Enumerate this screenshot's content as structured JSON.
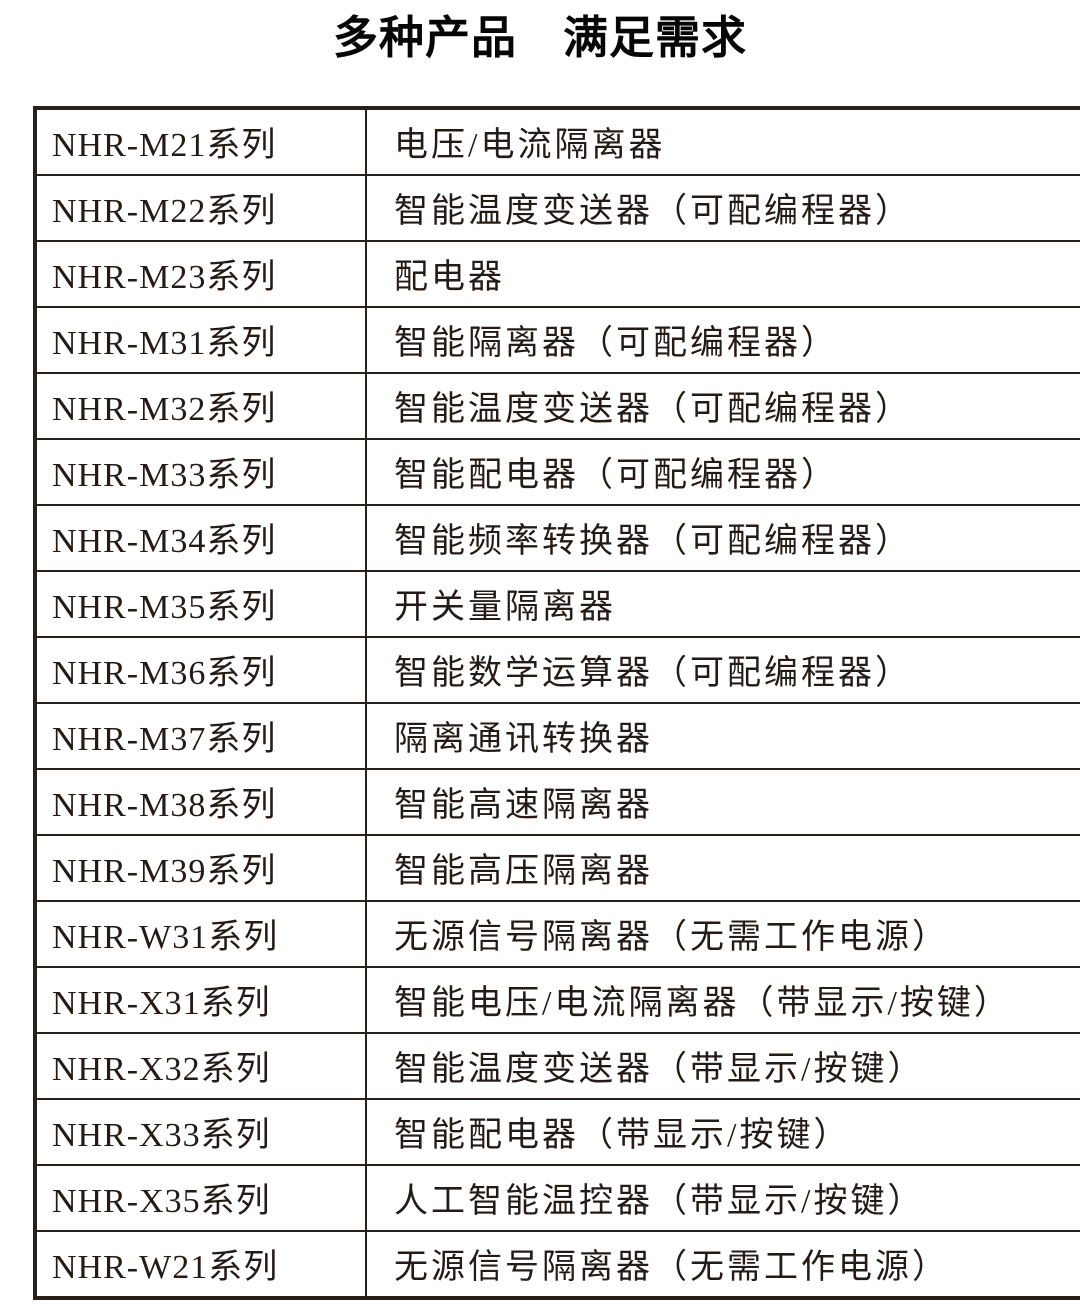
{
  "title": "多种产品　满足需求",
  "colors": {
    "background": "#ffffff",
    "title_text": "#060606",
    "table_text": "#241b16",
    "table_border": "#29201b"
  },
  "table": {
    "columns": [
      "series",
      "description"
    ],
    "rows": [
      {
        "series": "NHR-M21系列",
        "description": "电压/电流隔离器"
      },
      {
        "series": "NHR-M22系列",
        "description": "智能温度变送器（可配编程器）"
      },
      {
        "series": "NHR-M23系列",
        "description": "配电器"
      },
      {
        "series": "NHR-M31系列",
        "description": "智能隔离器（可配编程器）"
      },
      {
        "series": "NHR-M32系列",
        "description": "智能温度变送器（可配编程器）"
      },
      {
        "series": "NHR-M33系列",
        "description": "智能配电器（可配编程器）"
      },
      {
        "series": "NHR-M34系列",
        "description": "智能频率转换器（可配编程器）"
      },
      {
        "series": "NHR-M35系列",
        "description": "开关量隔离器"
      },
      {
        "series": "NHR-M36系列",
        "description": "智能数学运算器（可配编程器）"
      },
      {
        "series": "NHR-M37系列",
        "description": "隔离通讯转换器"
      },
      {
        "series": "NHR-M38系列",
        "description": "智能高速隔离器"
      },
      {
        "series": "NHR-M39系列",
        "description": "智能高压隔离器"
      },
      {
        "series": "NHR-W31系列",
        "description": "无源信号隔离器（无需工作电源）"
      },
      {
        "series": "NHR-X31系列",
        "description": "智能电压/电流隔离器（带显示/按键）"
      },
      {
        "series": "NHR-X32系列",
        "description": "智能温度变送器（带显示/按键）"
      },
      {
        "series": "NHR-X33系列",
        "description": "智能配电器（带显示/按键）"
      },
      {
        "series": "NHR-X35系列",
        "description": "人工智能温控器（带显示/按键）"
      },
      {
        "series": "NHR-W21系列",
        "description": "无源信号隔离器（无需工作电源）"
      }
    ]
  }
}
